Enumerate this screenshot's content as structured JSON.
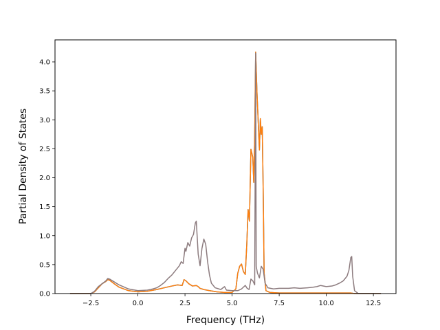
{
  "chart_data": {
    "type": "line",
    "title": "",
    "xlabel": "Frequency (THz)",
    "ylabel": "Partial Density of States",
    "xlim": [
      -4.4,
      13.7
    ],
    "ylim": [
      0.0,
      4.38
    ],
    "xticks": [
      -2.5,
      0.0,
      2.5,
      5.0,
      7.5,
      10.0,
      12.5
    ],
    "xtick_labels": [
      "−2.5",
      "0.0",
      "2.5",
      "5.0",
      "7.5",
      "10.0",
      "12.5"
    ],
    "yticks": [
      0.0,
      0.5,
      1.0,
      1.5,
      2.0,
      2.5,
      3.0,
      3.5,
      4.0
    ],
    "ytick_labels": [
      "0.0",
      "0.5",
      "1.0",
      "1.5",
      "2.0",
      "2.5",
      "3.0",
      "3.5",
      "4.0"
    ],
    "grid": false,
    "legend": "none",
    "series": [
      {
        "color": "#1f77b4",
        "points": [
          [
            -3.6,
            0.0
          ],
          [
            -2.5,
            0.0
          ],
          [
            -2.3,
            0.03
          ],
          [
            -2.1,
            0.1
          ],
          [
            -1.9,
            0.17
          ],
          [
            -1.7,
            0.21
          ],
          [
            -1.6,
            0.24
          ],
          [
            -1.5,
            0.23
          ],
          [
            -1.3,
            0.18
          ],
          [
            -1.0,
            0.11
          ],
          [
            -0.5,
            0.05
          ],
          [
            0.0,
            0.03
          ],
          [
            0.5,
            0.04
          ],
          [
            1.0,
            0.07
          ],
          [
            1.4,
            0.1
          ],
          [
            1.8,
            0.13
          ],
          [
            2.1,
            0.15
          ],
          [
            2.35,
            0.14
          ],
          [
            2.45,
            0.24
          ],
          [
            2.55,
            0.22
          ],
          [
            2.7,
            0.17
          ],
          [
            2.9,
            0.13
          ],
          [
            3.1,
            0.14
          ],
          [
            3.2,
            0.12
          ],
          [
            3.3,
            0.09
          ],
          [
            3.5,
            0.07
          ],
          [
            3.8,
            0.05
          ],
          [
            4.2,
            0.03
          ],
          [
            4.6,
            0.02
          ],
          [
            5.0,
            0.02
          ],
          [
            5.2,
            0.08
          ],
          [
            5.3,
            0.35
          ],
          [
            5.4,
            0.47
          ],
          [
            5.5,
            0.51
          ],
          [
            5.6,
            0.38
          ],
          [
            5.7,
            0.33
          ],
          [
            5.78,
            0.85
          ],
          [
            5.85,
            1.45
          ],
          [
            5.92,
            1.25
          ],
          [
            6.0,
            2.49
          ],
          [
            6.1,
            2.35
          ],
          [
            6.15,
            1.92
          ],
          [
            6.2,
            2.7
          ],
          [
            6.25,
            4.17
          ],
          [
            6.32,
            3.48
          ],
          [
            6.38,
            3.02
          ],
          [
            6.45,
            2.48
          ],
          [
            6.5,
            3.02
          ],
          [
            6.55,
            2.75
          ],
          [
            6.6,
            2.88
          ],
          [
            6.65,
            1.8
          ],
          [
            6.7,
            0.35
          ],
          [
            6.8,
            0.05
          ],
          [
            7.0,
            0.02
          ],
          [
            7.5,
            0.01
          ],
          [
            9.0,
            0.01
          ],
          [
            11.0,
            0.01
          ],
          [
            11.3,
            0.01
          ],
          [
            11.5,
            0.0
          ],
          [
            12.9,
            0.0
          ]
        ]
      },
      {
        "color": "#ff7f0e",
        "points": [
          [
            -3.6,
            0.0
          ],
          [
            -2.5,
            0.0
          ],
          [
            -2.3,
            0.03
          ],
          [
            -2.1,
            0.1
          ],
          [
            -1.9,
            0.17
          ],
          [
            -1.7,
            0.21
          ],
          [
            -1.6,
            0.24
          ],
          [
            -1.5,
            0.23
          ],
          [
            -1.3,
            0.18
          ],
          [
            -1.0,
            0.11
          ],
          [
            -0.5,
            0.05
          ],
          [
            0.0,
            0.03
          ],
          [
            0.5,
            0.04
          ],
          [
            1.0,
            0.07
          ],
          [
            1.4,
            0.1
          ],
          [
            1.8,
            0.13
          ],
          [
            2.1,
            0.15
          ],
          [
            2.35,
            0.14
          ],
          [
            2.45,
            0.24
          ],
          [
            2.55,
            0.22
          ],
          [
            2.7,
            0.17
          ],
          [
            2.9,
            0.13
          ],
          [
            3.1,
            0.14
          ],
          [
            3.2,
            0.12
          ],
          [
            3.3,
            0.09
          ],
          [
            3.5,
            0.07
          ],
          [
            3.8,
            0.05
          ],
          [
            4.2,
            0.03
          ],
          [
            4.6,
            0.02
          ],
          [
            5.0,
            0.02
          ],
          [
            5.2,
            0.08
          ],
          [
            5.3,
            0.35
          ],
          [
            5.4,
            0.47
          ],
          [
            5.5,
            0.51
          ],
          [
            5.6,
            0.38
          ],
          [
            5.7,
            0.33
          ],
          [
            5.78,
            0.85
          ],
          [
            5.85,
            1.45
          ],
          [
            5.92,
            1.25
          ],
          [
            6.0,
            2.49
          ],
          [
            6.1,
            2.35
          ],
          [
            6.15,
            1.92
          ],
          [
            6.2,
            2.7
          ],
          [
            6.25,
            4.17
          ],
          [
            6.32,
            3.48
          ],
          [
            6.38,
            3.02
          ],
          [
            6.45,
            2.48
          ],
          [
            6.5,
            3.02
          ],
          [
            6.55,
            2.75
          ],
          [
            6.6,
            2.88
          ],
          [
            6.65,
            1.8
          ],
          [
            6.7,
            0.35
          ],
          [
            6.8,
            0.05
          ],
          [
            7.0,
            0.02
          ],
          [
            7.5,
            0.01
          ],
          [
            9.0,
            0.01
          ],
          [
            11.0,
            0.01
          ],
          [
            11.3,
            0.01
          ],
          [
            11.5,
            0.0
          ],
          [
            12.9,
            0.0
          ]
        ]
      },
      {
        "color": "#8c7b7e",
        "points": [
          [
            -3.6,
            0.0
          ],
          [
            -2.5,
            0.0
          ],
          [
            -2.3,
            0.04
          ],
          [
            -2.1,
            0.12
          ],
          [
            -1.9,
            0.17
          ],
          [
            -1.7,
            0.22
          ],
          [
            -1.6,
            0.26
          ],
          [
            -1.5,
            0.25
          ],
          [
            -1.3,
            0.21
          ],
          [
            -1.0,
            0.15
          ],
          [
            -0.5,
            0.08
          ],
          [
            0.0,
            0.05
          ],
          [
            0.5,
            0.06
          ],
          [
            0.8,
            0.08
          ],
          [
            1.0,
            0.1
          ],
          [
            1.2,
            0.14
          ],
          [
            1.4,
            0.19
          ],
          [
            1.6,
            0.26
          ],
          [
            1.8,
            0.32
          ],
          [
            2.0,
            0.4
          ],
          [
            2.2,
            0.48
          ],
          [
            2.3,
            0.55
          ],
          [
            2.4,
            0.52
          ],
          [
            2.5,
            0.78
          ],
          [
            2.55,
            0.73
          ],
          [
            2.65,
            0.88
          ],
          [
            2.75,
            0.82
          ],
          [
            2.85,
            0.96
          ],
          [
            2.95,
            1.02
          ],
          [
            3.05,
            1.22
          ],
          [
            3.1,
            1.25
          ],
          [
            3.2,
            0.68
          ],
          [
            3.3,
            0.48
          ],
          [
            3.4,
            0.78
          ],
          [
            3.5,
            0.94
          ],
          [
            3.6,
            0.85
          ],
          [
            3.7,
            0.55
          ],
          [
            3.8,
            0.32
          ],
          [
            3.9,
            0.18
          ],
          [
            4.1,
            0.1
          ],
          [
            4.4,
            0.07
          ],
          [
            4.6,
            0.12
          ],
          [
            4.7,
            0.06
          ],
          [
            5.0,
            0.05
          ],
          [
            5.3,
            0.05
          ],
          [
            5.5,
            0.08
          ],
          [
            5.7,
            0.14
          ],
          [
            5.8,
            0.09
          ],
          [
            5.9,
            0.07
          ],
          [
            6.0,
            0.25
          ],
          [
            6.1,
            0.22
          ],
          [
            6.2,
            0.15
          ],
          [
            6.25,
            4.15
          ],
          [
            6.28,
            0.47
          ],
          [
            6.35,
            0.35
          ],
          [
            6.45,
            0.27
          ],
          [
            6.55,
            0.47
          ],
          [
            6.65,
            0.42
          ],
          [
            6.75,
            0.18
          ],
          [
            6.9,
            0.1
          ],
          [
            7.2,
            0.08
          ],
          [
            7.5,
            0.09
          ],
          [
            8.0,
            0.09
          ],
          [
            8.3,
            0.1
          ],
          [
            8.6,
            0.09
          ],
          [
            9.0,
            0.1
          ],
          [
            9.3,
            0.11
          ],
          [
            9.5,
            0.12
          ],
          [
            9.7,
            0.14
          ],
          [
            10.0,
            0.12
          ],
          [
            10.3,
            0.13
          ],
          [
            10.5,
            0.15
          ],
          [
            10.7,
            0.18
          ],
          [
            10.9,
            0.22
          ],
          [
            11.1,
            0.3
          ],
          [
            11.2,
            0.4
          ],
          [
            11.3,
            0.62
          ],
          [
            11.35,
            0.64
          ],
          [
            11.4,
            0.3
          ],
          [
            11.5,
            0.05
          ],
          [
            11.7,
            0.0
          ],
          [
            12.9,
            0.0
          ]
        ]
      }
    ]
  }
}
